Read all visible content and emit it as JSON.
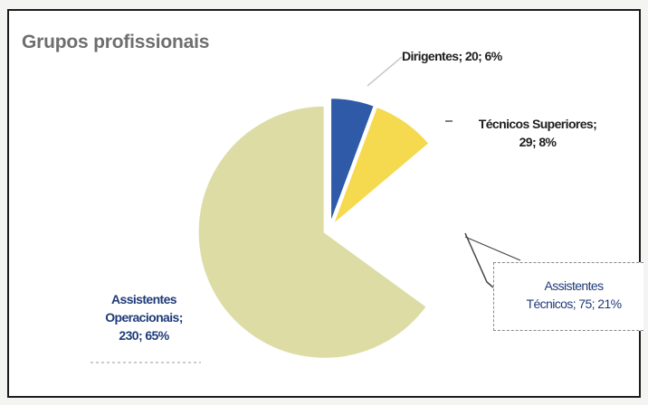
{
  "chart_data": {
    "type": "pie",
    "title": "Grupos profissionais",
    "slices": [
      {
        "name": "Dirigentes",
        "value": 20,
        "percent": 6,
        "color": "#2e5aa8",
        "label_line1": "Dirigentes; 20; 6%",
        "label_line2": ""
      },
      {
        "name": "Técnicos Superiores",
        "value": 29,
        "percent": 8,
        "color": "#f5d94e",
        "label_line1": "Técnicos Superiores;",
        "label_line2": "29; 8%"
      },
      {
        "name": "Assistentes Técnicos",
        "value": 75,
        "percent": 21,
        "color": "#ffffff",
        "label_line1": "Assistentes",
        "label_line2": "Técnicos; 75; 21%"
      },
      {
        "name": "Assistentes Operacionais",
        "value": 230,
        "percent": 65,
        "color": "#dcdca4",
        "label_line1": "Assistentes",
        "label_line2": "Operacionais;",
        "label_line3": "230; 65%"
      }
    ],
    "legend": "none"
  }
}
